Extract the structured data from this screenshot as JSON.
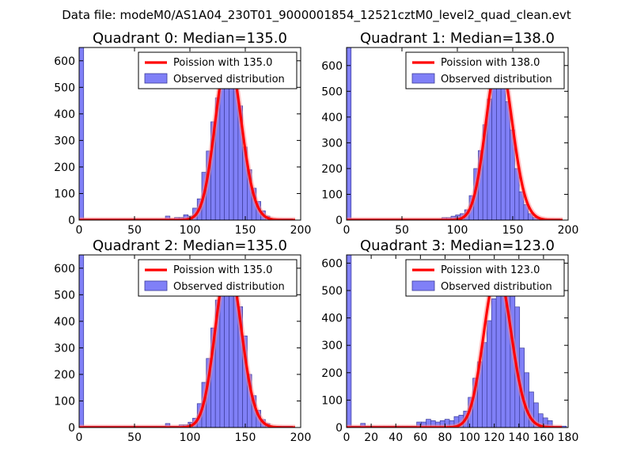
{
  "figure_title": "Data file: modeM0/AS1A04_230T01_9000001854_12521cztM0_level2_quad_clean.evt",
  "colors": {
    "hist_fill": "#8080f7",
    "hist_edge": "#3c3c99",
    "curve": "#ff0000",
    "curve_glow": "#ff8888"
  },
  "legend": {
    "curve_label_prefix": "Poission with ",
    "hist_label": "Observed distribution"
  },
  "chart_data": [
    {
      "type": "bar",
      "title": "Quadrant 0: Median=135.0",
      "median": 135.0,
      "curve_label": "Poission with 135.0",
      "xlim": [
        0,
        200
      ],
      "ylim": [
        0,
        650
      ],
      "xticks": [
        0,
        50,
        100,
        150,
        200
      ],
      "xtick_labels": [
        "0",
        "50",
        "100",
        "150",
        "200"
      ],
      "yticks": [
        0,
        100,
        200,
        300,
        400,
        500,
        600
      ],
      "ytick_labels": [
        "0",
        "100",
        "200",
        "300",
        "400",
        "500",
        "600"
      ],
      "bin_width": 4.1,
      "bins": [
        [
          0,
          650
        ],
        [
          4.1,
          5
        ],
        [
          8.2,
          5
        ],
        [
          12.3,
          5
        ],
        [
          16.4,
          5
        ],
        [
          20.5,
          5
        ],
        [
          24.6,
          5
        ],
        [
          28.7,
          5
        ],
        [
          32.8,
          5
        ],
        [
          36.9,
          5
        ],
        [
          41,
          5
        ],
        [
          45.1,
          5
        ],
        [
          49.2,
          5
        ],
        [
          53.3,
          5
        ],
        [
          57.4,
          5
        ],
        [
          61.5,
          5
        ],
        [
          65.6,
          5
        ],
        [
          69.7,
          5
        ],
        [
          73.8,
          5
        ],
        [
          77.9,
          15
        ],
        [
          82,
          5
        ],
        [
          86.1,
          10
        ],
        [
          90.2,
          10
        ],
        [
          94.3,
          20
        ],
        [
          98.4,
          15
        ],
        [
          102.5,
          45
        ],
        [
          106.6,
          80
        ],
        [
          110.7,
          180
        ],
        [
          114.8,
          260
        ],
        [
          118.9,
          370
        ],
        [
          123,
          460
        ],
        [
          127.1,
          555
        ],
        [
          131.2,
          620
        ],
        [
          135.3,
          540
        ],
        [
          139.4,
          530
        ],
        [
          143.5,
          430
        ],
        [
          147.6,
          275
        ],
        [
          151.7,
          190
        ],
        [
          155.8,
          120
        ],
        [
          159.9,
          70
        ],
        [
          164,
          35
        ],
        [
          168.1,
          15
        ],
        [
          172.2,
          5
        ],
        [
          176.3,
          5
        ],
        [
          180.4,
          5
        ],
        [
          184.5,
          5
        ],
        [
          188.6,
          5
        ]
      ]
    },
    {
      "type": "bar",
      "title": "Quadrant 1: Median=138.0",
      "median": 138.0,
      "curve_label": "Poission with 138.0",
      "xlim": [
        0,
        200
      ],
      "ylim": [
        0,
        670
      ],
      "xticks": [
        0,
        50,
        100,
        150,
        200
      ],
      "xtick_labels": [
        "0",
        "50",
        "100",
        "150",
        "200"
      ],
      "yticks": [
        0,
        100,
        200,
        300,
        400,
        500,
        600
      ],
      "ytick_labels": [
        "0",
        "100",
        "200",
        "300",
        "400",
        "500",
        "600"
      ],
      "bin_width": 4.1,
      "bins": [
        [
          0,
          670
        ],
        [
          4.1,
          5
        ],
        [
          8.2,
          5
        ],
        [
          12.3,
          5
        ],
        [
          16.4,
          5
        ],
        [
          20.5,
          5
        ],
        [
          24.6,
          5
        ],
        [
          28.7,
          5
        ],
        [
          32.8,
          5
        ],
        [
          36.9,
          5
        ],
        [
          41,
          5
        ],
        [
          45.1,
          5
        ],
        [
          49.2,
          5
        ],
        [
          53.3,
          5
        ],
        [
          57.4,
          5
        ],
        [
          61.5,
          5
        ],
        [
          65.6,
          5
        ],
        [
          69.7,
          5
        ],
        [
          73.8,
          5
        ],
        [
          77.9,
          5
        ],
        [
          82,
          5
        ],
        [
          86.1,
          10
        ],
        [
          90.2,
          10
        ],
        [
          94.3,
          15
        ],
        [
          98.4,
          20
        ],
        [
          102.5,
          25
        ],
        [
          106.6,
          40
        ],
        [
          110.7,
          95
        ],
        [
          114.8,
          200
        ],
        [
          118.9,
          270
        ],
        [
          123,
          370
        ],
        [
          127.1,
          470
        ],
        [
          131.2,
          600
        ],
        [
          135.3,
          630
        ],
        [
          139.4,
          560
        ],
        [
          143.5,
          460
        ],
        [
          147.6,
          350
        ],
        [
          151.7,
          200
        ],
        [
          155.8,
          110
        ],
        [
          159.9,
          60
        ],
        [
          164,
          25
        ],
        [
          168.1,
          10
        ],
        [
          172.2,
          5
        ],
        [
          176.3,
          5
        ],
        [
          180.4,
          5
        ],
        [
          184.5,
          5
        ],
        [
          188.6,
          5
        ]
      ]
    },
    {
      "type": "bar",
      "title": "Quadrant 2: Median=135.0",
      "median": 135.0,
      "curve_label": "Poission with 135.0",
      "xlim": [
        0,
        200
      ],
      "ylim": [
        0,
        650
      ],
      "xticks": [
        0,
        50,
        100,
        150,
        200
      ],
      "xtick_labels": [
        "0",
        "50",
        "100",
        "150",
        "200"
      ],
      "yticks": [
        0,
        100,
        200,
        300,
        400,
        500,
        600
      ],
      "ytick_labels": [
        "0",
        "100",
        "200",
        "300",
        "400",
        "500",
        "600"
      ],
      "bin_width": 4.1,
      "bins": [
        [
          0,
          650
        ],
        [
          4.1,
          5
        ],
        [
          8.2,
          5
        ],
        [
          12.3,
          5
        ],
        [
          16.4,
          5
        ],
        [
          20.5,
          5
        ],
        [
          24.6,
          5
        ],
        [
          28.7,
          5
        ],
        [
          32.8,
          5
        ],
        [
          36.9,
          5
        ],
        [
          41,
          5
        ],
        [
          45.1,
          5
        ],
        [
          49.2,
          5
        ],
        [
          53.3,
          5
        ],
        [
          57.4,
          5
        ],
        [
          61.5,
          5
        ],
        [
          65.6,
          5
        ],
        [
          69.7,
          5
        ],
        [
          73.8,
          5
        ],
        [
          77.9,
          15
        ],
        [
          82,
          5
        ],
        [
          86.1,
          5
        ],
        [
          90.2,
          10
        ],
        [
          94.3,
          10
        ],
        [
          98.4,
          20
        ],
        [
          102.5,
          35
        ],
        [
          106.6,
          90
        ],
        [
          110.7,
          170
        ],
        [
          114.8,
          260
        ],
        [
          118.9,
          375
        ],
        [
          123,
          480
        ],
        [
          127.1,
          540
        ],
        [
          131.2,
          580
        ],
        [
          135.3,
          620
        ],
        [
          139.4,
          575
        ],
        [
          143.5,
          455
        ],
        [
          147.6,
          345
        ],
        [
          151.7,
          200
        ],
        [
          155.8,
          120
        ],
        [
          159.9,
          65
        ],
        [
          164,
          30
        ],
        [
          168.1,
          15
        ],
        [
          172.2,
          5
        ],
        [
          176.3,
          5
        ],
        [
          180.4,
          5
        ],
        [
          184.5,
          5
        ],
        [
          188.6,
          5
        ]
      ]
    },
    {
      "type": "bar",
      "title": "Quadrant 3: Median=123.0",
      "median": 123.0,
      "curve_label": "Poission with 123.0",
      "xlim": [
        0,
        180
      ],
      "ylim": [
        0,
        630
      ],
      "xticks": [
        0,
        20,
        40,
        60,
        80,
        100,
        120,
        140,
        160,
        180
      ],
      "xtick_labels": [
        "0",
        "20",
        "40",
        "60",
        "80",
        "100",
        "120",
        "140",
        "160",
        "180"
      ],
      "yticks": [
        0,
        100,
        200,
        300,
        400,
        500,
        600
      ],
      "ytick_labels": [
        "0",
        "100",
        "200",
        "300",
        "400",
        "500",
        "600"
      ],
      "bin_width": 3.8,
      "bins": [
        [
          0,
          630
        ],
        [
          3.8,
          5
        ],
        [
          7.6,
          5
        ],
        [
          11.4,
          15
        ],
        [
          15.2,
          5
        ],
        [
          19,
          5
        ],
        [
          22.8,
          5
        ],
        [
          26.6,
          5
        ],
        [
          30.4,
          5
        ],
        [
          34.2,
          5
        ],
        [
          38,
          5
        ],
        [
          41.8,
          5
        ],
        [
          45.6,
          5
        ],
        [
          49.4,
          5
        ],
        [
          53.2,
          5
        ],
        [
          57,
          20
        ],
        [
          60.8,
          20
        ],
        [
          64.6,
          30
        ],
        [
          68.4,
          25
        ],
        [
          72.2,
          20
        ],
        [
          76,
          25
        ],
        [
          79.8,
          30
        ],
        [
          83.6,
          25
        ],
        [
          87.4,
          40
        ],
        [
          91.2,
          45
        ],
        [
          95,
          60
        ],
        [
          98.8,
          110
        ],
        [
          102.6,
          180
        ],
        [
          106.4,
          240
        ],
        [
          110.2,
          310
        ],
        [
          114,
          390
        ],
        [
          117.8,
          470
        ],
        [
          121.6,
          570
        ],
        [
          125.4,
          510
        ],
        [
          129.2,
          570
        ],
        [
          133,
          540
        ],
        [
          136.8,
          440
        ],
        [
          140.6,
          290
        ],
        [
          144.4,
          200
        ],
        [
          148.2,
          130
        ],
        [
          152,
          90
        ],
        [
          155.8,
          50
        ],
        [
          159.6,
          35
        ],
        [
          163.4,
          25
        ],
        [
          167.2,
          5
        ],
        [
          171,
          5
        ],
        [
          174.8,
          5
        ]
      ]
    }
  ]
}
